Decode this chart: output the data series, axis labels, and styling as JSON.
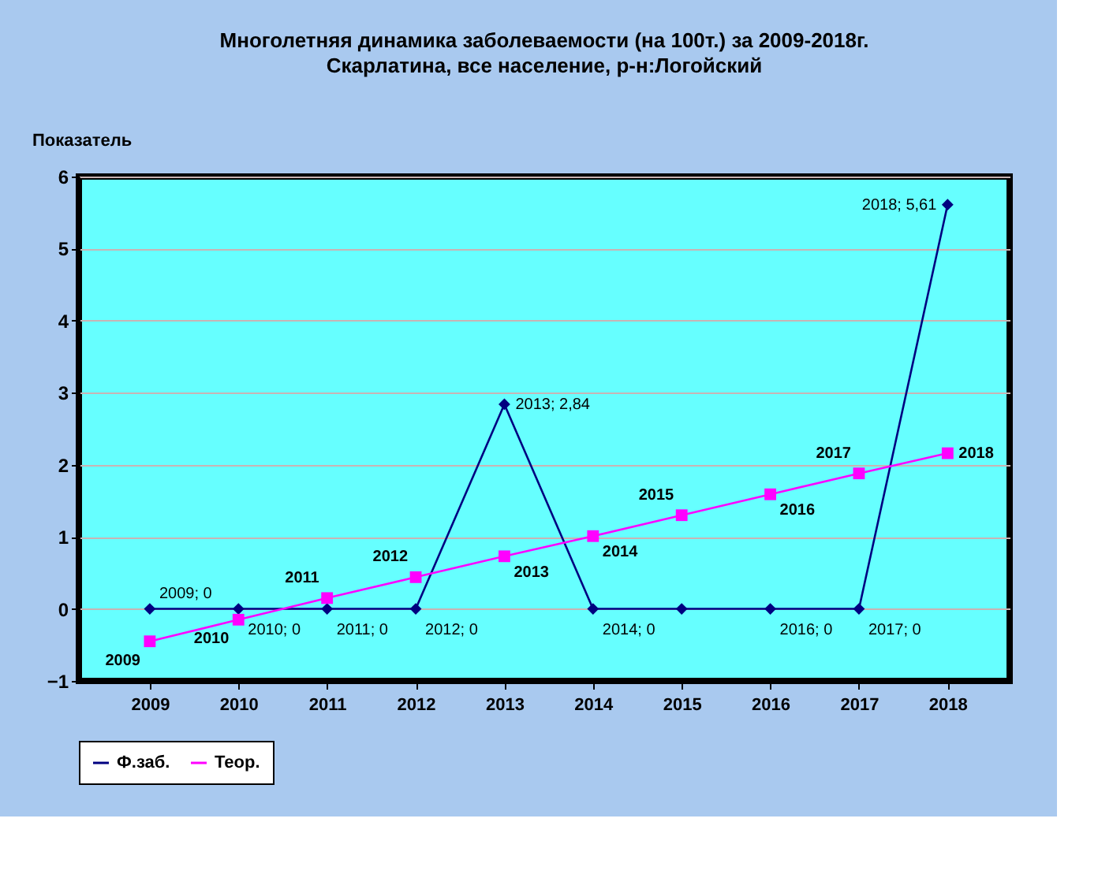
{
  "chart_data": {
    "type": "line",
    "title": "Многолетняя динамика заболеваемости (на 100т.)  за 2009-2018г.",
    "subtitle": "Скарлатина, все население, р-н:Логойский",
    "ylabel": "Показатель",
    "categories": [
      "2009",
      "2010",
      "2011",
      "2012",
      "2013",
      "2014",
      "2015",
      "2016",
      "2017",
      "2018"
    ],
    "series": [
      {
        "name": "Ф.заб.",
        "color": "#000080",
        "marker": "diamond",
        "values": [
          0,
          0,
          0,
          0,
          2.84,
          0,
          0,
          0,
          0,
          5.61
        ],
        "value_labels": [
          "2009; 0",
          "2010; 0",
          "2011; 0",
          "2012; 0",
          "2013; 2,84",
          "2014; 0",
          null,
          "2016; 0",
          "2017; 0",
          "2018; 5,61"
        ]
      },
      {
        "name": "Теор.",
        "color": "#ff00ff",
        "marker": "square",
        "values": [
          -0.45,
          -0.15,
          0.15,
          0.44,
          0.73,
          1.01,
          1.3,
          1.59,
          1.88,
          2.16
        ]
      }
    ],
    "annotations": [
      {
        "text": "2009",
        "x": "2009",
        "y": -0.45
      },
      {
        "text": "2010",
        "x": "2010",
        "y": -0.15
      },
      {
        "text": "2011",
        "x": "2011",
        "y": 0.15
      },
      {
        "text": "2012",
        "x": "2012",
        "y": 0.44
      },
      {
        "text": "2013",
        "x": "2013",
        "y": 0.73
      },
      {
        "text": "2014",
        "x": "2014",
        "y": 1.01
      },
      {
        "text": "2015",
        "x": "2015",
        "y": 1.3
      },
      {
        "text": "2016",
        "x": "2016",
        "y": 1.59
      },
      {
        "text": "2017",
        "x": "2017",
        "y": 1.88
      },
      {
        "text": "2018",
        "x": "2018",
        "y": 2.16
      }
    ],
    "ylim": [
      -1,
      6
    ],
    "yticks": [
      -1,
      0,
      1,
      2,
      3,
      4,
      5,
      6
    ],
    "grid": "y",
    "legend": "bottom"
  }
}
